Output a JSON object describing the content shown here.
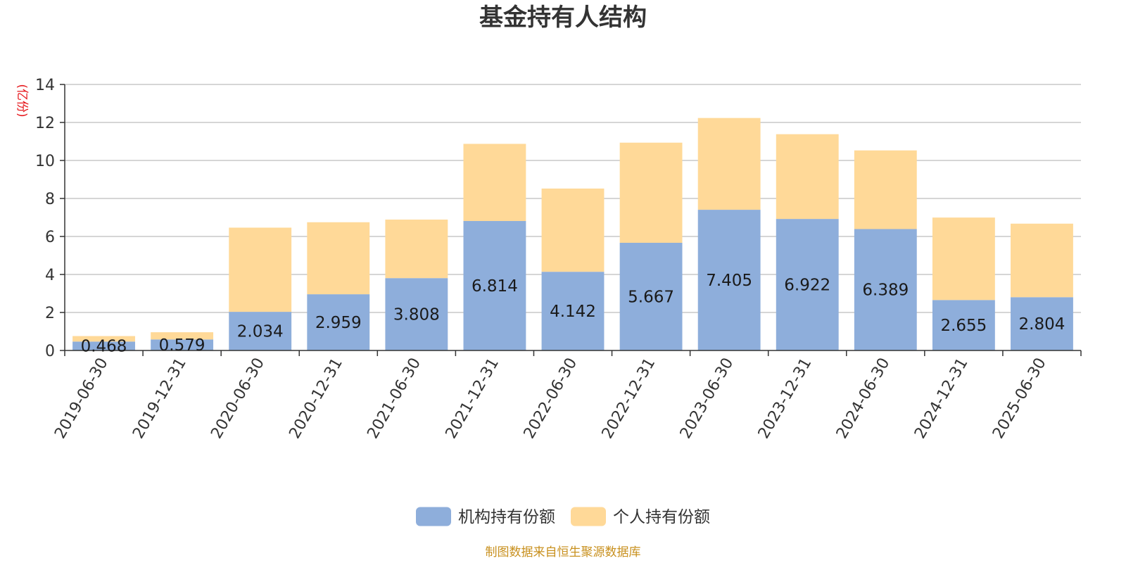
{
  "chart_data": {
    "type": "bar",
    "stacked": true,
    "title": "基金持有人结构",
    "unit_label": "(亿份)",
    "categories": [
      "2019-06-30",
      "2019-12-31",
      "2020-06-30",
      "2020-12-31",
      "2021-06-30",
      "2021-12-31",
      "2022-06-30",
      "2022-12-31",
      "2023-06-30",
      "2023-12-31",
      "2024-06-30",
      "2024-12-31",
      "2025-06-30"
    ],
    "series": [
      {
        "name": "机构持有份额",
        "color": "#8eaedb",
        "values": [
          0.468,
          0.579,
          2.034,
          2.959,
          3.808,
          6.814,
          4.142,
          5.667,
          7.405,
          6.922,
          6.389,
          2.655,
          2.804
        ],
        "labels": [
          "0.468",
          "0.579",
          "2.034",
          "2.959",
          "3.808",
          "6.814",
          "4.142",
          "5.667",
          "7.405",
          "6.922",
          "6.389",
          "2.655",
          "2.804"
        ]
      },
      {
        "name": "个人持有份额",
        "color": "#ffd998",
        "values": [
          0.29,
          0.38,
          4.43,
          3.79,
          3.08,
          4.06,
          4.38,
          5.27,
          4.83,
          4.46,
          4.14,
          4.34,
          3.87
        ]
      }
    ],
    "ylim": [
      0,
      14
    ],
    "yticks": [
      "0",
      "2",
      "4",
      "6",
      "8",
      "10",
      "12",
      "14"
    ],
    "grid": true,
    "legend_position": "bottom-center",
    "source_note": "制图数据来自恒生聚源数据库"
  }
}
